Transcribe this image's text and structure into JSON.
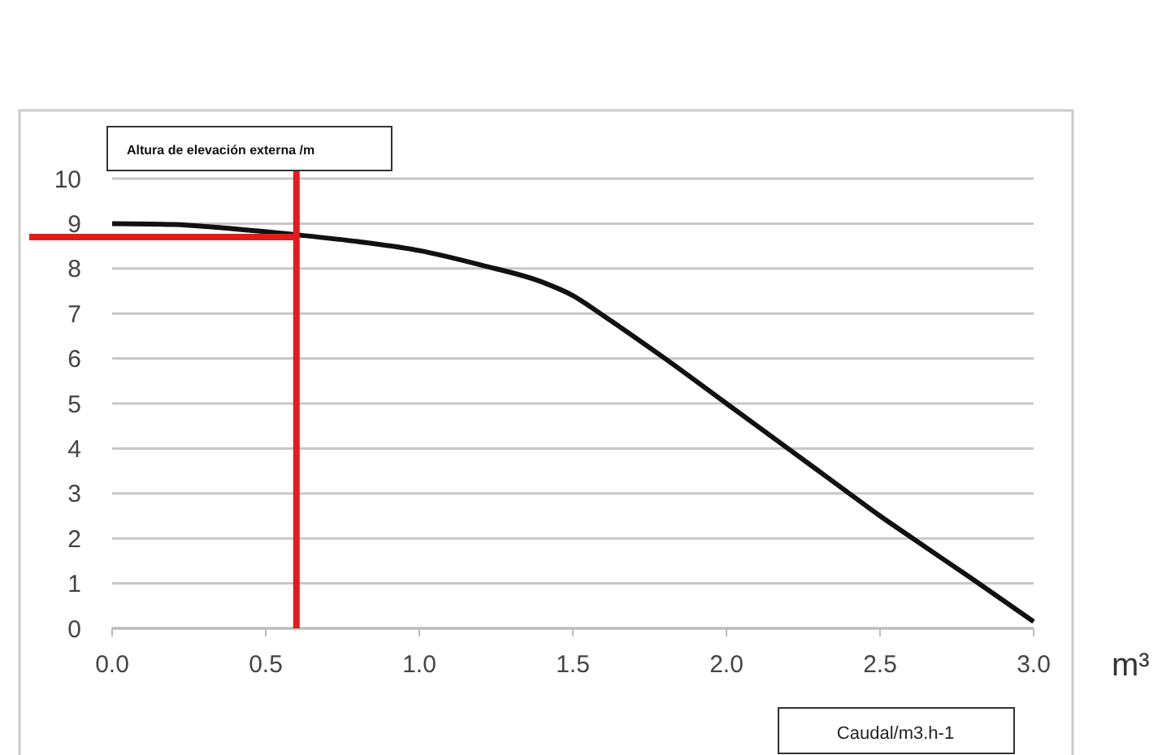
{
  "chart_data": {
    "type": "line",
    "ylabel": "Altura de elevación externa /m",
    "xlabel": "Caudal/m3.h-1",
    "annotations": [
      "m³"
    ],
    "x": [
      0,
      0.2,
      0.4,
      0.6,
      0.8,
      1.0,
      1.2,
      1.4,
      1.5,
      1.6,
      1.8,
      2.0,
      2.2,
      2.4,
      2.5,
      2.6,
      2.8,
      3.0
    ],
    "series": [
      {
        "color": "#111111",
        "values": [
          9.0,
          8.98,
          8.88,
          8.75,
          8.6,
          8.4,
          8.08,
          7.7,
          7.4,
          6.95,
          6.0,
          5.0,
          4.0,
          3.0,
          2.5,
          2.03,
          1.1,
          0.15
        ]
      }
    ],
    "xlim": [
      0,
      3
    ],
    "xticks": [
      {
        "value": 0,
        "label": "0.0"
      },
      {
        "value": 0.5,
        "label": "0.5"
      },
      {
        "value": 1,
        "label": "1.0"
      },
      {
        "value": 1.5,
        "label": "1.5"
      },
      {
        "value": 2,
        "label": "2.0"
      },
      {
        "value": 2.5,
        "label": "2.5"
      },
      {
        "value": 3,
        "label": "3.0"
      }
    ],
    "ylim": [
      0,
      10
    ],
    "yticks": [
      0,
      1,
      2,
      3,
      4,
      5,
      6,
      7,
      8,
      9,
      10
    ],
    "grid": "y",
    "marker": "none",
    "line_style": "solid",
    "ref_lines": [
      {
        "axis": "x",
        "value": 0.6,
        "color": "#e31b1b"
      },
      {
        "axis": "y",
        "value": 8.7,
        "color": "#e31b1b"
      }
    ]
  }
}
